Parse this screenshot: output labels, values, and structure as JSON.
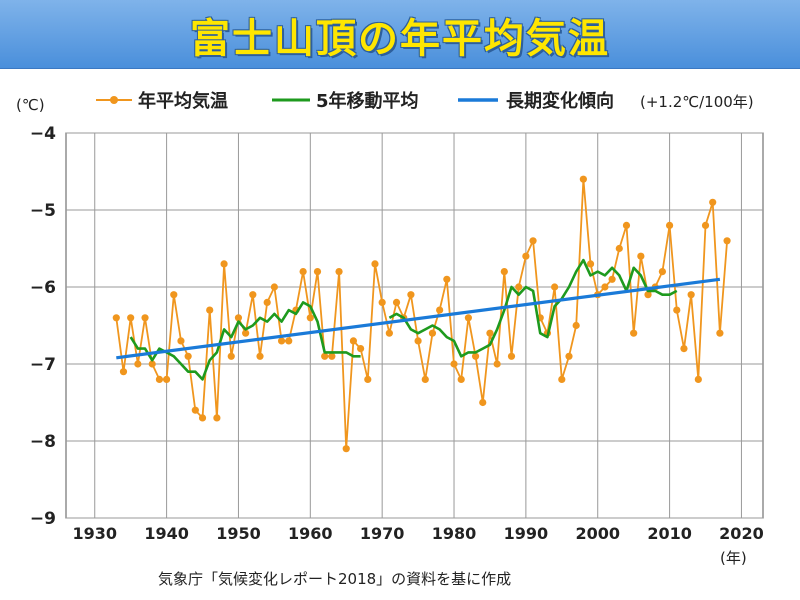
{
  "title": "富士山頂の年平均気温",
  "source": "気象庁「気候変化レポート2018」の資料を基に作成",
  "chart_data": {
    "type": "line",
    "ylabel": "(℃)",
    "xlabel": "(年)",
    "xlim": [
      1926,
      2023
    ],
    "ylim": [
      -9,
      -4
    ],
    "xticks": [
      1930,
      1940,
      1950,
      1960,
      1970,
      1980,
      1990,
      2000,
      2010,
      2020
    ],
    "yticks": [
      -9,
      -8,
      -7,
      -6,
      -5,
      -4
    ],
    "ytick_labels": [
      "−9",
      "−8",
      "−7",
      "−6",
      "−5",
      "−4"
    ],
    "grid": true,
    "legend_position": "top",
    "series": [
      {
        "name": "年平均気温",
        "color": "#f0961e",
        "marker": "circle",
        "x": [
          1933,
          1934,
          1935,
          1936,
          1937,
          1938,
          1939,
          1940,
          1941,
          1942,
          1943,
          1944,
          1945,
          1946,
          1947,
          1948,
          1949,
          1950,
          1951,
          1952,
          1953,
          1954,
          1955,
          1956,
          1957,
          1958,
          1959,
          1960,
          1961,
          1962,
          1963,
          1964,
          1965,
          1966,
          1967,
          1968,
          1969,
          1970,
          1971,
          1972,
          1973,
          1974,
          1975,
          1976,
          1977,
          1978,
          1979,
          1980,
          1981,
          1982,
          1983,
          1984,
          1985,
          1986,
          1987,
          1988,
          1989,
          1990,
          1991,
          1992,
          1993,
          1994,
          1995,
          1996,
          1997,
          1998,
          1999,
          2000,
          2001,
          2002,
          2003,
          2004,
          2005,
          2006,
          2007,
          2008,
          2009,
          2010,
          2011,
          2012,
          2013,
          2014,
          2015,
          2016,
          2017,
          2018
        ],
        "y": [
          -6.4,
          -7.1,
          -6.4,
          -7.0,
          -6.4,
          -7.0,
          -7.2,
          -7.2,
          -6.1,
          -6.7,
          -6.9,
          -7.6,
          -7.7,
          -6.3,
          -7.7,
          -5.7,
          -6.9,
          -6.4,
          -6.6,
          -6.1,
          -6.9,
          -6.2,
          -6.0,
          -6.7,
          -6.7,
          -6.3,
          -5.8,
          -6.4,
          -5.8,
          -6.9,
          -6.9,
          -5.8,
          -8.1,
          -6.7,
          -6.8,
          -7.2,
          -5.7,
          -6.2,
          -6.6,
          -6.2,
          -6.4,
          -6.1,
          -6.7,
          -7.2,
          -6.6,
          -6.3,
          -5.9,
          -7.0,
          -7.2,
          -6.4,
          -6.9,
          -7.5,
          -6.6,
          -7.0,
          -5.8,
          -6.9,
          -6.0,
          -5.6,
          -5.4,
          -6.4,
          -6.6,
          -6.0,
          -7.2,
          -6.9,
          -6.5,
          -4.6,
          -5.7,
          -6.1,
          -6.0,
          -5.9,
          -5.5,
          -5.2,
          -6.6,
          -5.6,
          -6.1,
          -6.0,
          -5.8,
          -5.2,
          -6.3,
          -6.8,
          -6.1,
          -7.2,
          -5.2,
          -4.9,
          -6.6,
          -5.4
        ]
      },
      {
        "name": "5年移動平均",
        "color": "#1e9a1e",
        "x": [
          1935,
          1936,
          1937,
          1938,
          1939,
          1940,
          1941,
          1942,
          1943,
          1944,
          1945,
          1946,
          1947,
          1948,
          1949,
          1950,
          1951,
          1952,
          1953,
          1954,
          1955,
          1956,
          1957,
          1958,
          1959,
          1960,
          1961,
          1962,
          1963,
          1964,
          1965,
          1966,
          1967
        ],
        "y": [
          -6.65,
          -6.8,
          -6.8,
          -6.95,
          -6.8,
          -6.85,
          -6.9,
          -7.0,
          -7.1,
          -7.1,
          -7.2,
          -6.95,
          -6.85,
          -6.55,
          -6.65,
          -6.45,
          -6.55,
          -6.5,
          -6.4,
          -6.45,
          -6.35,
          -6.45,
          -6.3,
          -6.35,
          -6.2,
          -6.25,
          -6.45,
          -6.85,
          -6.85,
          -6.85,
          -6.85,
          -6.9,
          -6.9
        ]
      },
      {
        "name": "5年移動平均",
        "color": "#1e9a1e",
        "x": [
          1971,
          1972,
          1973,
          1974,
          1975,
          1976,
          1977,
          1978,
          1979,
          1980,
          1981,
          1982,
          1983,
          1984,
          1985,
          1986,
          1987,
          1988,
          1989,
          1990,
          1991,
          1992,
          1993,
          1994,
          1995,
          1996,
          1997,
          1998,
          1999,
          2000,
          2001,
          2002,
          2003,
          2004,
          2005,
          2006,
          2007,
          2008,
          2009,
          2010,
          2011
        ],
        "y": [
          -6.4,
          -6.35,
          -6.4,
          -6.55,
          -6.6,
          -6.55,
          -6.5,
          -6.55,
          -6.65,
          -6.7,
          -6.9,
          -6.85,
          -6.85,
          -6.8,
          -6.75,
          -6.55,
          -6.3,
          -6.0,
          -6.1,
          -6.0,
          -6.05,
          -6.6,
          -6.65,
          -6.25,
          -6.15,
          -6.0,
          -5.8,
          -5.65,
          -5.85,
          -5.8,
          -5.85,
          -5.75,
          -5.85,
          -6.05,
          -5.75,
          -5.85,
          -6.05,
          -6.05,
          -6.1,
          -6.1,
          -6.05
        ]
      },
      {
        "name": "長期変化傾向",
        "color": "#1a7ad8",
        "x": [
          1933,
          2017
        ],
        "y": [
          -6.92,
          -5.9
        ]
      }
    ],
    "legend": [
      {
        "label": "年平均気温",
        "color": "#f0961e",
        "style": "line-marker"
      },
      {
        "label": "5年移動平均",
        "color": "#1e9a1e",
        "style": "line"
      },
      {
        "label": "長期変化傾向",
        "color": "#1a7ad8",
        "style": "line",
        "note": "(+1.2℃/100年)"
      }
    ]
  }
}
